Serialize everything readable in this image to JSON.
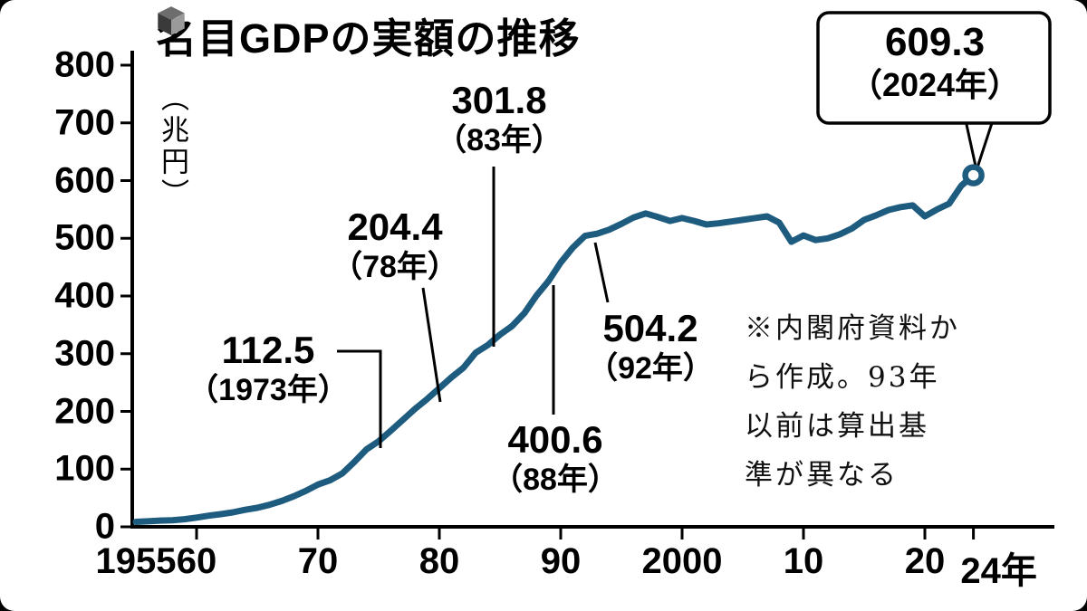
{
  "title": {
    "text": "名目GDPの実額の推移",
    "icon": "cube-icon"
  },
  "y_axis": {
    "unit": "（兆円）",
    "ticks": [
      800,
      700,
      600,
      500,
      400,
      300,
      200,
      100,
      0
    ]
  },
  "x_axis": {
    "ticks": [
      {
        "label": "1955",
        "year": 1955,
        "tick": false
      },
      {
        "label": "60",
        "year": 1960,
        "tick": true
      },
      {
        "label": "70",
        "year": 1970,
        "tick": true
      },
      {
        "label": "80",
        "year": 1980,
        "tick": true
      },
      {
        "label": "90",
        "year": 1990,
        "tick": true
      },
      {
        "label": "2000",
        "year": 2000,
        "tick": true
      },
      {
        "label": "10",
        "year": 2010,
        "tick": true
      },
      {
        "label": "20",
        "year": 2020,
        "tick": true
      },
      {
        "label": "24年",
        "year": 2024,
        "tick": true
      }
    ]
  },
  "annotations": [
    {
      "value": "112.5",
      "year_label": "（1973年）"
    },
    {
      "value": "204.4",
      "year_label": "（78年）"
    },
    {
      "value": "301.8",
      "year_label": "（83年）"
    },
    {
      "value": "400.6",
      "year_label": "（88年）"
    },
    {
      "value": "504.2",
      "year_label": "（92年）"
    }
  ],
  "callout": {
    "value": "609.3",
    "year_label": "（2024年）"
  },
  "note": {
    "lines": [
      "※内閣府資料か",
      "ら作成。93年",
      "以前は算出基",
      "準が異なる"
    ]
  },
  "colors": {
    "line": "#1d5b7f",
    "axis": "#000000"
  },
  "chart_data": {
    "type": "line",
    "title": "名目GDPの実額の推移",
    "xlabel": "年",
    "ylabel": "兆円",
    "ylim": [
      0,
      800
    ],
    "xlim": [
      1955,
      2024
    ],
    "grid": false,
    "legend": false,
    "x": [
      1955,
      1956,
      1957,
      1958,
      1959,
      1960,
      1961,
      1962,
      1963,
      1964,
      1965,
      1966,
      1967,
      1968,
      1969,
      1970,
      1971,
      1972,
      1973,
      1974,
      1975,
      1976,
      1977,
      1978,
      1979,
      1980,
      1981,
      1982,
      1983,
      1984,
      1985,
      1986,
      1987,
      1988,
      1989,
      1990,
      1991,
      1992,
      1993,
      1994,
      1995,
      1996,
      1997,
      1998,
      1999,
      2000,
      2001,
      2002,
      2003,
      2004,
      2005,
      2006,
      2007,
      2008,
      2009,
      2010,
      2011,
      2012,
      2013,
      2014,
      2015,
      2016,
      2017,
      2018,
      2019,
      2020,
      2021,
      2022,
      2023,
      2024
    ],
    "series": [
      {
        "name": "名目GDP実額（兆円）",
        "values": [
          8.6,
          9.5,
          10.9,
          11.5,
          13.2,
          16.0,
          19.3,
          21.9,
          25.1,
          29.5,
          32.9,
          38.1,
          44.7,
          52.9,
          62.2,
          73.3,
          80.7,
          92.4,
          112.5,
          134.2,
          148.3,
          166.4,
          185.4,
          204.4,
          221.5,
          240.1,
          259.0,
          276.0,
          301.8,
          315.0,
          333.0,
          348.0,
          370.0,
          400.6,
          426.0,
          458.0,
          484.0,
          504.2,
          508.0,
          515.0,
          525.0,
          536.0,
          543.0,
          537.0,
          530.0,
          535.0,
          530.0,
          524.0,
          526.0,
          529.0,
          532.0,
          535.0,
          538.0,
          527.0,
          494.0,
          505.0,
          497.0,
          500.0,
          507.0,
          517.0,
          532.0,
          540.0,
          549.0,
          554.0,
          557.0,
          538.0,
          550.0,
          560.0,
          591.0,
          609.3
        ]
      }
    ],
    "annotated_points": [
      {
        "year": 1973,
        "value": 112.5
      },
      {
        "year": 1978,
        "value": 204.4
      },
      {
        "year": 1983,
        "value": 301.8
      },
      {
        "year": 1988,
        "value": 400.6
      },
      {
        "year": 1992,
        "value": 504.2
      },
      {
        "year": 2024,
        "value": 609.3
      }
    ]
  }
}
